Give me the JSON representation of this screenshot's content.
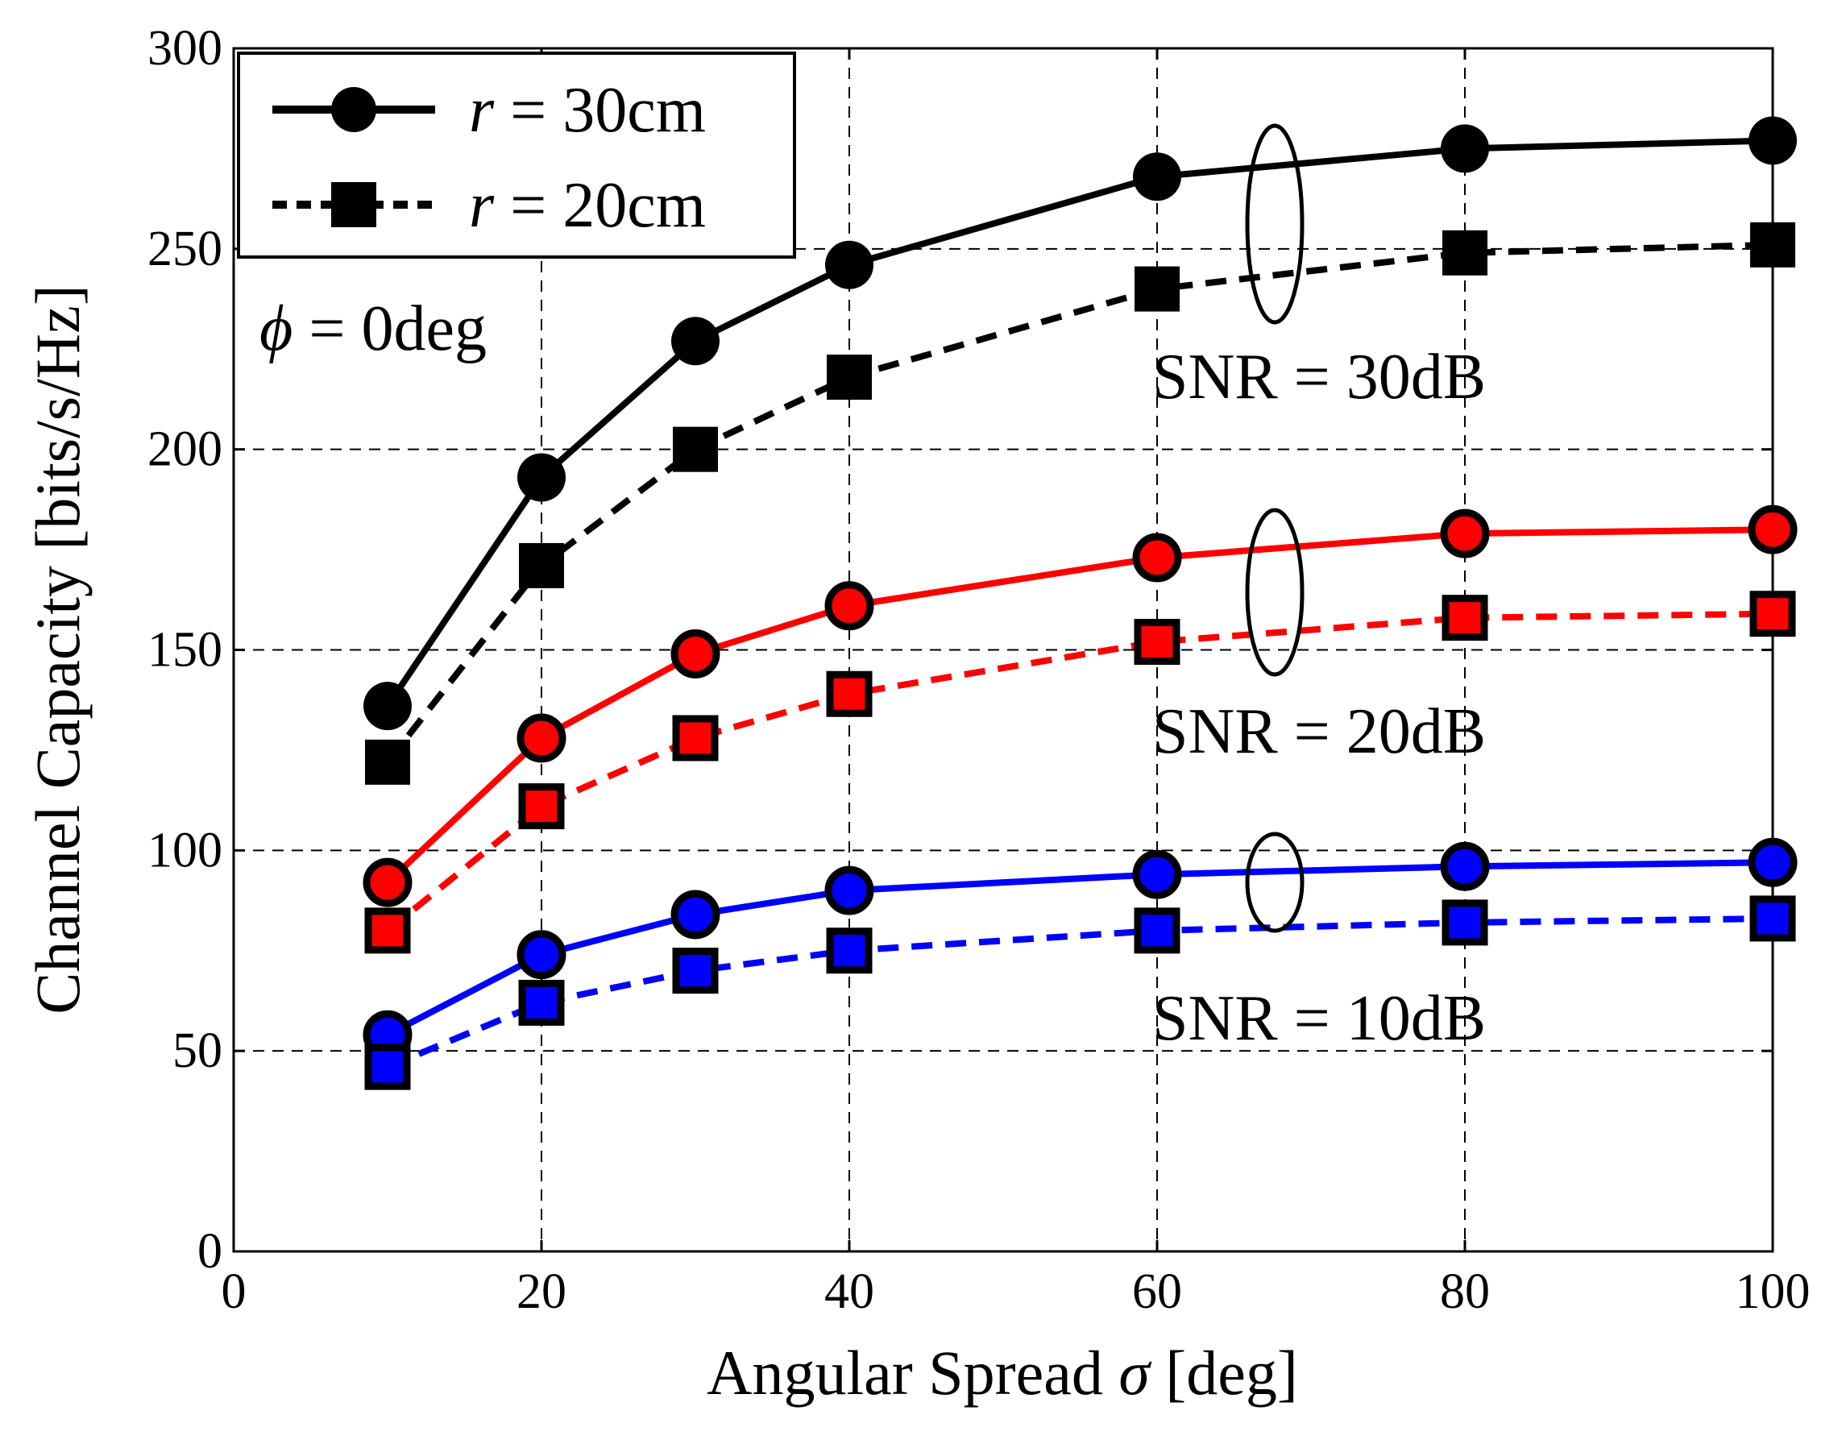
{
  "chart_data": {
    "type": "line",
    "title": "",
    "xlabel": {
      "prefix": "Angular Spread ",
      "symbol": "σ",
      "suffix": " [deg]"
    },
    "ylabel": "Channel Capacity [bits/s/Hz]",
    "xlim": [
      0,
      100
    ],
    "ylim": [
      0,
      300
    ],
    "xticks": [
      0,
      20,
      40,
      60,
      80,
      100
    ],
    "yticks": [
      0,
      50,
      100,
      150,
      200,
      250,
      300
    ],
    "grid": true,
    "x": [
      10,
      20,
      30,
      40,
      60,
      80,
      100
    ],
    "series": [
      {
        "name": "r = 30cm, SNR = 30dB",
        "radius": "30cm",
        "snr": "30dB",
        "color": "#000000",
        "style": "solid",
        "marker": "circle",
        "values": [
          136,
          193,
          227,
          246,
          268,
          275,
          277
        ]
      },
      {
        "name": "r = 20cm, SNR = 30dB",
        "radius": "20cm",
        "snr": "30dB",
        "color": "#000000",
        "style": "dashed",
        "marker": "square",
        "values": [
          122,
          171,
          200,
          218,
          240,
          249,
          251
        ]
      },
      {
        "name": "r = 30cm, SNR = 20dB",
        "radius": "30cm",
        "snr": "20dB",
        "color": "#ff0000",
        "style": "solid",
        "marker": "circle",
        "values": [
          92,
          128,
          149,
          161,
          173,
          179,
          180
        ]
      },
      {
        "name": "r = 20cm, SNR = 20dB",
        "radius": "20cm",
        "snr": "20dB",
        "color": "#ff0000",
        "style": "dashed",
        "marker": "square",
        "values": [
          80,
          111,
          128,
          139,
          152,
          158,
          159
        ]
      },
      {
        "name": "r = 30cm, SNR = 10dB",
        "radius": "30cm",
        "snr": "10dB",
        "color": "#0000ff",
        "style": "solid",
        "marker": "circle",
        "values": [
          54,
          74,
          84,
          90,
          94,
          96,
          97
        ]
      },
      {
        "name": "r = 20cm, SNR = 10dB",
        "radius": "20cm",
        "snr": "10dB",
        "color": "#0000ff",
        "style": "dashed",
        "marker": "square",
        "values": [
          46,
          62,
          70,
          75,
          80,
          82,
          83
        ]
      }
    ],
    "legend": {
      "position": "top-left",
      "entries": [
        {
          "var": "r",
          "text": " = 30cm",
          "style": "solid",
          "marker": "circle"
        },
        {
          "var": "r",
          "text": " = 20cm",
          "style": "dashed",
          "marker": "square"
        }
      ]
    },
    "annotations": {
      "phi": {
        "symbol": "ϕ",
        "text": " = 0deg"
      },
      "snr_labels": [
        "SNR = 30dB",
        "SNR = 20dB",
        "SNR = 10dB"
      ]
    }
  }
}
